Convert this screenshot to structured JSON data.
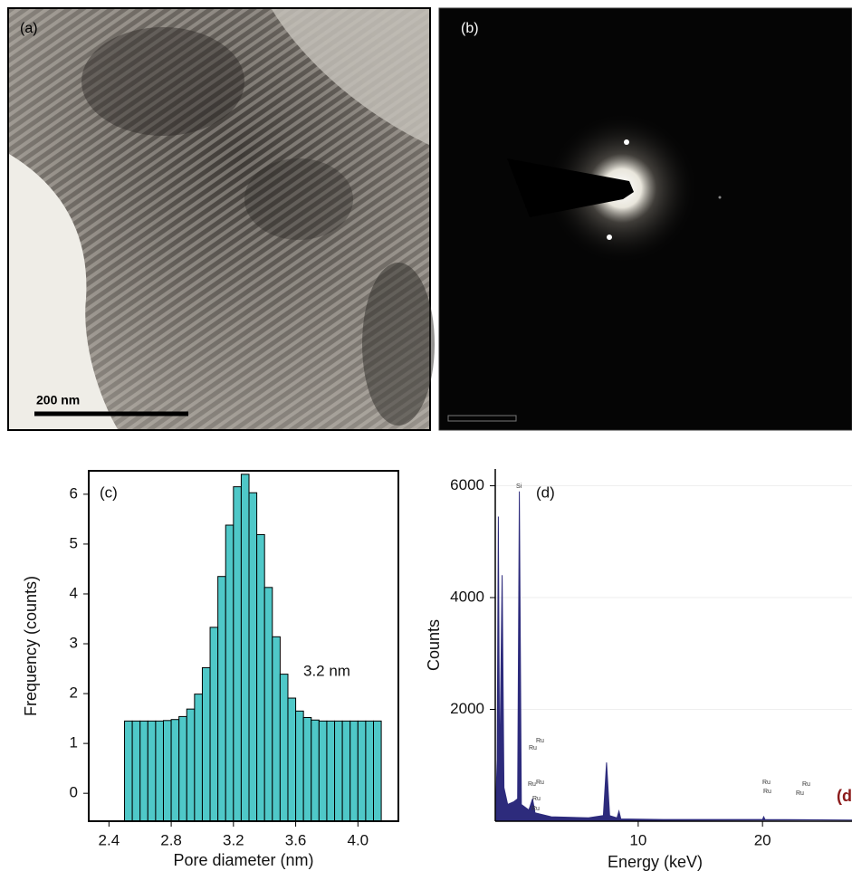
{
  "images": [
    {
      "label": "(a)",
      "scale_bar": "200 nm"
    },
    {
      "label": "(b)"
    }
  ],
  "chart_data": [
    {
      "type": "histogram",
      "label": "(c)",
      "x_label": "Pore diameter (nm)",
      "y_label": "Frequency (counts)",
      "annotation": "3.2 nm",
      "bins": [
        2.5,
        2.55,
        2.6,
        2.65,
        2.7,
        2.75,
        2.8,
        2.85,
        2.9,
        2.95,
        3.0,
        3.05,
        3.1,
        3.15,
        3.2,
        3.25,
        3.3,
        3.35,
        3.4,
        3.45,
        3.5,
        3.55,
        3.6,
        3.65,
        3.7,
        3.75,
        3.8,
        3.85,
        3.9,
        3.95,
        4.0,
        4.05,
        4.1,
        4.15
      ],
      "values": [
        1.45,
        1.45,
        1.45,
        1.45,
        1.45,
        1.46,
        1.48,
        1.54,
        1.69,
        1.99,
        2.52,
        3.33,
        4.35,
        5.38,
        6.15,
        6.4,
        6.03,
        5.19,
        4.13,
        3.14,
        2.39,
        1.91,
        1.65,
        1.52,
        1.47,
        1.45,
        1.45,
        1.45,
        1.45,
        1.45,
        1.45,
        1.45,
        1.45
      ],
      "color": "#4fc8c8",
      "xlim": [
        2.27,
        4.26
      ],
      "xticks": [
        2.4,
        2.8,
        3.2,
        3.6,
        {
          "value": 4,
          "label": "4.0"
        }
      ],
      "ylim": [
        -0.56,
        6.47
      ],
      "yticks": [
        0,
        1,
        2,
        3,
        4,
        5,
        6
      ]
    },
    {
      "type": "area",
      "label": "(d)",
      "x_label": "Energy (keV)",
      "y_label": "Counts",
      "edge_label": "(d",
      "peak_labels": [
        "Si",
        "Ru",
        "Ru",
        "Ru",
        "Ru",
        "Ru",
        "Ru",
        "Ru",
        "Ru",
        "Ru",
        "Ru"
      ],
      "x": [
        -1.5,
        -1.35,
        -1.25,
        -1.15,
        -0.95,
        -0.8,
        -0.5,
        0.0,
        0.3,
        0.44,
        0.6,
        1.2,
        1.5,
        1.7,
        3,
        6,
        7.2,
        7.45,
        7.7,
        8.3,
        8.45,
        8.6,
        12,
        20,
        20.1,
        20.2,
        27.2
      ],
      "values": [
        0,
        1100,
        5450,
        800,
        4400,
        600,
        300,
        350,
        400,
        5900,
        300,
        200,
        400,
        150,
        80,
        60,
        100,
        1050,
        100,
        60,
        180,
        40,
        30,
        30,
        80,
        30,
        20
      ],
      "color": "#2d2b7c",
      "grid": true,
      "xlim": [
        -1.5,
        27.2
      ],
      "xticks": [
        10,
        20
      ],
      "ylim": [
        0,
        6300
      ],
      "yticks": [
        2000,
        4000,
        6000
      ]
    }
  ]
}
